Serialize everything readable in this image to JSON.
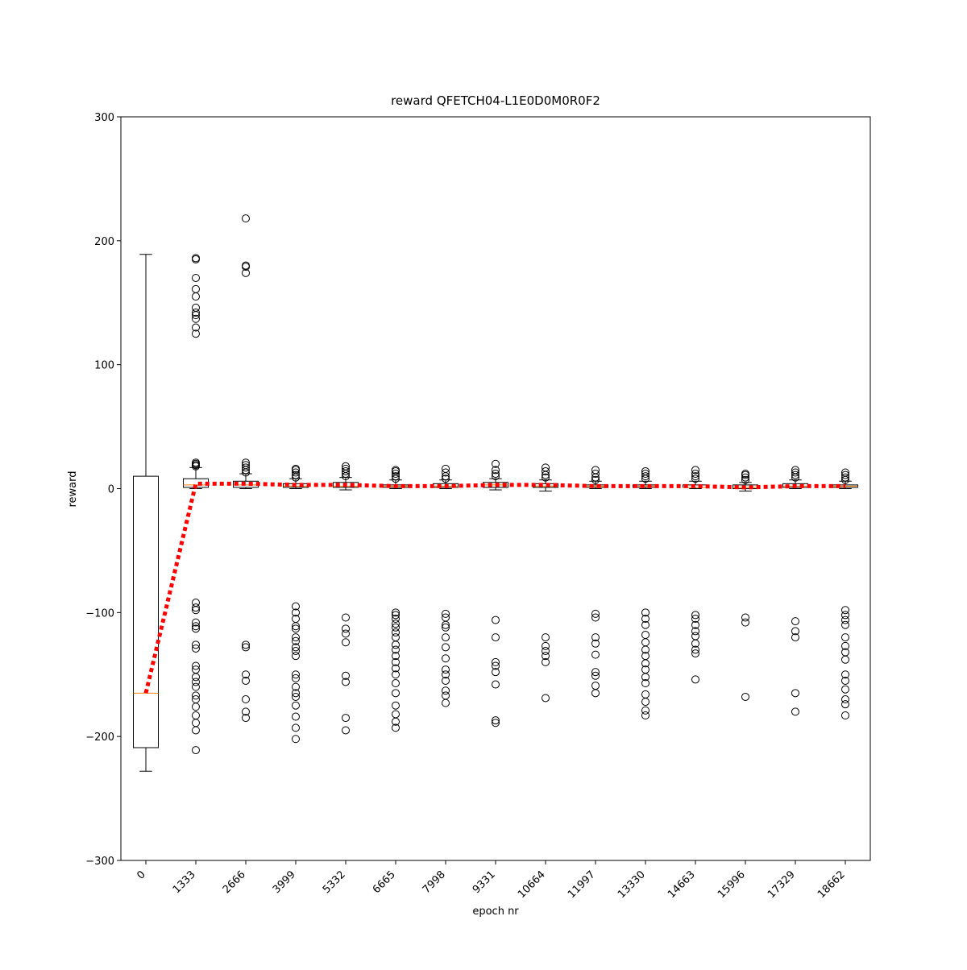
{
  "chart_data": {
    "type": "box",
    "title": "reward QFETCH04-L1E0D0M0R0F2",
    "x_label": "epoch nr",
    "y_label": "reward",
    "categories": [
      "0",
      "1333",
      "2666",
      "3999",
      "5332",
      "6665",
      "7998",
      "9331",
      "10664",
      "11997",
      "13330",
      "14663",
      "15996",
      "17329",
      "18662"
    ],
    "boxes": [
      {
        "whislo": -228,
        "q1": -209,
        "med": -165,
        "q3": 10,
        "whishi": 189,
        "fliers": []
      },
      {
        "whislo": 0,
        "q1": 1,
        "med": 3,
        "q3": 8,
        "whishi": 17,
        "fliers": [
          18,
          19,
          20,
          21,
          125,
          130,
          137,
          140,
          142,
          146,
          155,
          161,
          170,
          185,
          186,
          -92,
          -96,
          -98,
          -108,
          -111,
          -113,
          -126,
          -129,
          -143,
          -146,
          -152,
          -156,
          -160,
          -167,
          -170,
          -176,
          -183,
          -189,
          -195,
          -211
        ]
      },
      {
        "whislo": 0,
        "q1": 1,
        "med": 3,
        "q3": 6,
        "whishi": 12,
        "fliers": [
          13,
          15,
          17,
          19,
          21,
          174,
          179,
          180,
          218,
          -126,
          -128,
          -150,
          -155,
          -170,
          -180,
          -185
        ]
      },
      {
        "whislo": 0,
        "q1": 1,
        "med": 2,
        "q3": 4,
        "whishi": 8,
        "fliers": [
          9,
          11,
          13,
          15,
          16,
          -95,
          -100,
          -105,
          -111,
          -113,
          -120,
          -123,
          -128,
          -131,
          -135,
          -150,
          -153,
          -160,
          -165,
          -168,
          -175,
          -184,
          -193,
          -202
        ]
      },
      {
        "whislo": -1,
        "q1": 1,
        "med": 2,
        "q3": 5,
        "whishi": 9,
        "fliers": [
          10,
          12,
          14,
          16,
          18,
          -104,
          -113,
          -117,
          -124,
          -151,
          -156,
          -185,
          -195
        ]
      },
      {
        "whislo": 0,
        "q1": 1,
        "med": 2,
        "q3": 3,
        "whishi": 7,
        "fliers": [
          8,
          10,
          12,
          14,
          15,
          -100,
          -102,
          -105,
          -109,
          -112,
          -116,
          -120,
          -126,
          -130,
          -135,
          -140,
          -145,
          -150,
          -157,
          -165,
          -175,
          -182,
          -188,
          -193
        ]
      },
      {
        "whislo": 0,
        "q1": 1,
        "med": 2,
        "q3": 4,
        "whishi": 7,
        "fliers": [
          8,
          10,
          13,
          16,
          -101,
          -104,
          -110,
          -112,
          -120,
          -128,
          -137,
          -146,
          -150,
          -155,
          -163,
          -167,
          -173
        ]
      },
      {
        "whislo": -1,
        "q1": 1,
        "med": 3,
        "q3": 5,
        "whishi": 8,
        "fliers": [
          10,
          12,
          15,
          20,
          -106,
          -120,
          -140,
          -143,
          -148,
          -158,
          -187,
          -189
        ]
      },
      {
        "whislo": -2,
        "q1": 1,
        "med": 2,
        "q3": 4,
        "whishi": 7,
        "fliers": [
          9,
          11,
          14,
          17,
          -120,
          -127,
          -131,
          -135,
          -140,
          -169
        ]
      },
      {
        "whislo": 0,
        "q1": 1,
        "med": 2,
        "q3": 3,
        "whishi": 6,
        "fliers": [
          7,
          9,
          12,
          15,
          -101,
          -104,
          -120,
          -125,
          -134,
          -148,
          -151,
          -159,
          -165
        ]
      },
      {
        "whislo": 0,
        "q1": 1,
        "med": 2,
        "q3": 3,
        "whishi": 6,
        "fliers": [
          8,
          10,
          12,
          14,
          -100,
          -105,
          -110,
          -118,
          -124,
          -130,
          -135,
          -141,
          -146,
          -152,
          -157,
          -166,
          -172,
          -179,
          -183
        ]
      },
      {
        "whislo": 0,
        "q1": 1,
        "med": 1,
        "q3": 3,
        "whishi": 6,
        "fliers": [
          8,
          10,
          12,
          15,
          -102,
          -105,
          -110,
          -115,
          -119,
          -125,
          -130,
          -133,
          -154
        ]
      },
      {
        "whislo": -2,
        "q1": 0,
        "med": 1,
        "q3": 3,
        "whishi": 5,
        "fliers": [
          7,
          9,
          11,
          12,
          -104,
          -108,
          -168
        ]
      },
      {
        "whislo": 0,
        "q1": 1,
        "med": 2,
        "q3": 4,
        "whishi": 7,
        "fliers": [
          9,
          11,
          13,
          15,
          -107,
          -115,
          -120,
          -165,
          -180
        ]
      },
      {
        "whislo": 0,
        "q1": 1,
        "med": 2,
        "q3": 3,
        "whishi": 6,
        "fliers": [
          7,
          9,
          11,
          13,
          -98,
          -102,
          -106,
          -110,
          -120,
          -127,
          -132,
          -138,
          -150,
          -155,
          -162,
          -170,
          -174,
          -183
        ]
      }
    ],
    "box_color": "#000000",
    "median_color": "#ff7f0e",
    "mean": {
      "color": "#ff0000",
      "values": [
        -165,
        4,
        4,
        3,
        3,
        2,
        2,
        3,
        3,
        2,
        2,
        2,
        1,
        2,
        2
      ]
    },
    "ylim": [
      -300,
      300
    ],
    "yticks": [
      {
        "value": -300,
        "label": "−300"
      },
      {
        "value": -200,
        "label": "−200"
      },
      {
        "value": -100,
        "label": "−100"
      },
      0,
      100,
      200,
      300
    ]
  }
}
